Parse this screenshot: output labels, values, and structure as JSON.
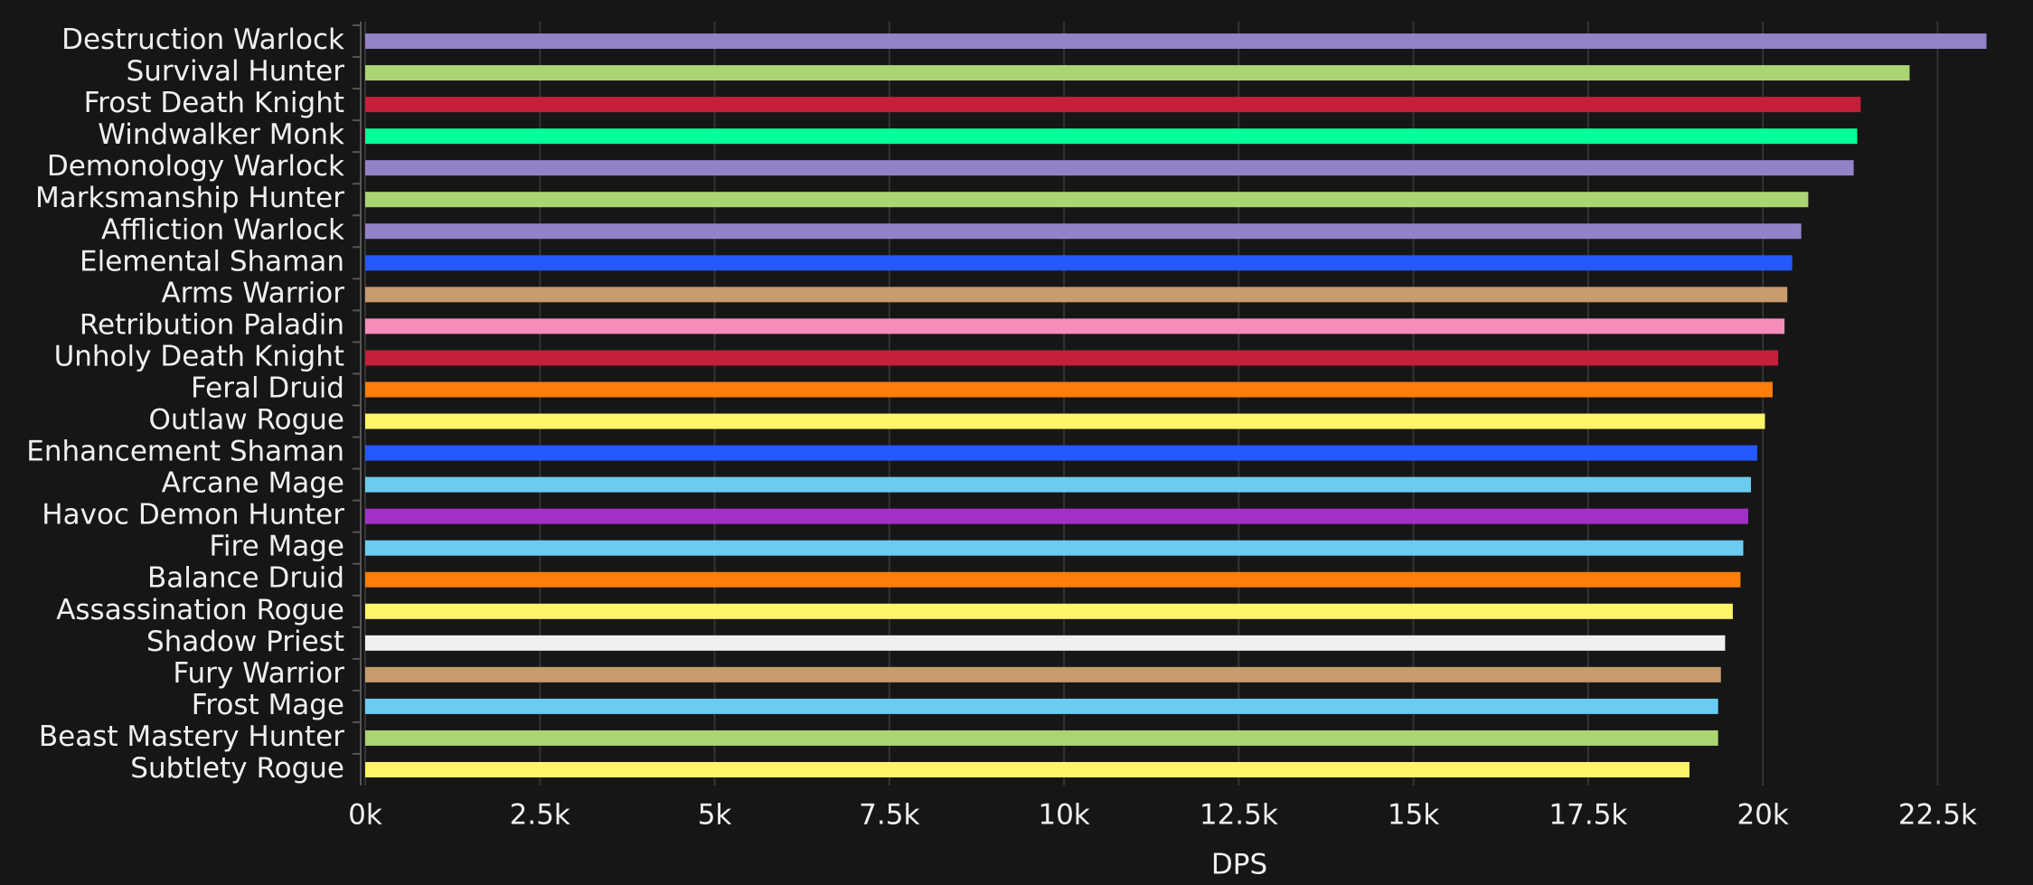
{
  "chart_data": {
    "type": "bar",
    "orientation": "horizontal",
    "x_label": "DPS",
    "categories": [
      "Destruction Warlock",
      "Survival Hunter",
      "Frost Death Knight",
      "Windwalker Monk",
      "Demonology Warlock",
      "Marksmanship Hunter",
      "Affliction Warlock",
      "Elemental Shaman",
      "Arms Warrior",
      "Retribution Paladin",
      "Unholy Death Knight",
      "Feral Druid",
      "Outlaw Rogue",
      "Enhancement Shaman",
      "Arcane Mage",
      "Havoc Demon Hunter",
      "Fire Mage",
      "Balance Druid",
      "Assassination Rogue",
      "Shadow Priest",
      "Fury Warrior",
      "Frost Mage",
      "Beast Mastery Hunter",
      "Subtlety Rogue"
    ],
    "values": [
      23200,
      22100,
      21400,
      21350,
      21300,
      20650,
      20550,
      20420,
      20350,
      20310,
      20220,
      20140,
      20030,
      19920,
      19830,
      19790,
      19720,
      19680,
      19570,
      19460,
      19400,
      19360,
      19360,
      18950
    ],
    "colors": [
      "#9482c9",
      "#abd473",
      "#c41f3b",
      "#00ff96",
      "#9482c9",
      "#abd473",
      "#9482c9",
      "#2459ff",
      "#c79c6e",
      "#f58cba",
      "#c41f3b",
      "#ff7d0a",
      "#fff569",
      "#2459ff",
      "#69ccf0",
      "#a330c9",
      "#69ccf0",
      "#ff7d0a",
      "#fff569",
      "#f0f0f0",
      "#c79c6e",
      "#69ccf0",
      "#abd473",
      "#fff569"
    ],
    "xlim": [
      0,
      23400
    ],
    "xticks": [
      {
        "value": 0,
        "label": "0k"
      },
      {
        "value": 2500,
        "label": "2.5k"
      },
      {
        "value": 5000,
        "label": "5k"
      },
      {
        "value": 7500,
        "label": "7.5k"
      },
      {
        "value": 10000,
        "label": "10k"
      },
      {
        "value": 12500,
        "label": "12.5k"
      },
      {
        "value": 15000,
        "label": "15k"
      },
      {
        "value": 17500,
        "label": "17.5k"
      },
      {
        "value": 20000,
        "label": "20k"
      },
      {
        "value": 22500,
        "label": "22.5k"
      }
    ],
    "grid": true
  }
}
